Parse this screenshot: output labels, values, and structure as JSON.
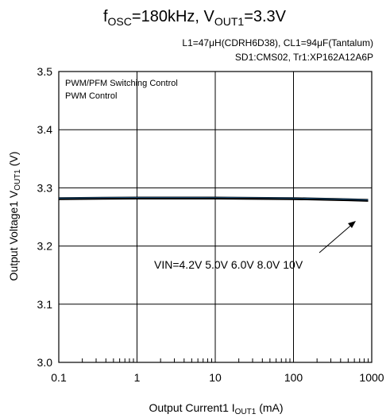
{
  "chart_data": {
    "type": "line",
    "title_main": "f",
    "title_sub": "OSC",
    "title_mid": "=180kHz, V",
    "title_sub2": "OUT1",
    "title_end": "=3.3V",
    "conditions_line1": "L1=47μH(CDRH6D38), CL1=94μF(Tantalum)",
    "conditions_line2": "SD1:CMS02, Tr1:XP162A12A6P",
    "plot_notes": [
      "PWM/PFM Switching Control",
      "PWM  Control"
    ],
    "xlabel_main": "Output Current1  I",
    "xlabel_sub": "OUT1",
    "xlabel_end": " (mA)",
    "ylabel_main": "Output Voltage1  V",
    "ylabel_sub": "OUT1",
    "ylabel_end": " (V)",
    "x_scale": "log",
    "xlim": [
      0.1,
      1000
    ],
    "ylim": [
      3.0,
      3.5
    ],
    "x_ticks": [
      0.1,
      1,
      10,
      100,
      1000
    ],
    "x_tick_labels": [
      "0.1",
      "1",
      "10",
      "100",
      "1000"
    ],
    "y_ticks": [
      3.0,
      3.1,
      3.2,
      3.3,
      3.4,
      3.5
    ],
    "y_tick_labels": [
      "3.0",
      "3.1",
      "3.2",
      "3.3",
      "3.4",
      "3.5"
    ],
    "grid": true,
    "annotation": "VIN=4.2V 5.0V 6.0V 8.0V 10V",
    "series": [
      {
        "color": "#000000",
        "x": [
          0.1,
          1,
          10,
          100,
          500,
          900
        ],
        "y": [
          3.283,
          3.284,
          3.284,
          3.283,
          3.281,
          3.28
        ]
      },
      {
        "color": "#1f6fb0",
        "x": [
          0.1,
          1,
          10,
          100,
          500,
          900
        ],
        "y": [
          3.282,
          3.283,
          3.283,
          3.282,
          3.28,
          3.279
        ]
      },
      {
        "color": "#000000",
        "x": [
          0.1,
          1,
          10,
          100,
          500,
          900
        ],
        "y": [
          3.281,
          3.282,
          3.282,
          3.281,
          3.279,
          3.278
        ]
      },
      {
        "color": "#000000",
        "x": [
          0.1,
          1,
          10,
          100,
          500,
          900
        ],
        "y": [
          3.281,
          3.281,
          3.282,
          3.281,
          3.279,
          3.278
        ]
      },
      {
        "color": "#000000",
        "x": [
          0.1,
          1,
          10,
          100,
          500,
          900
        ],
        "y": [
          3.28,
          3.281,
          3.281,
          3.28,
          3.278,
          3.277
        ]
      }
    ]
  }
}
